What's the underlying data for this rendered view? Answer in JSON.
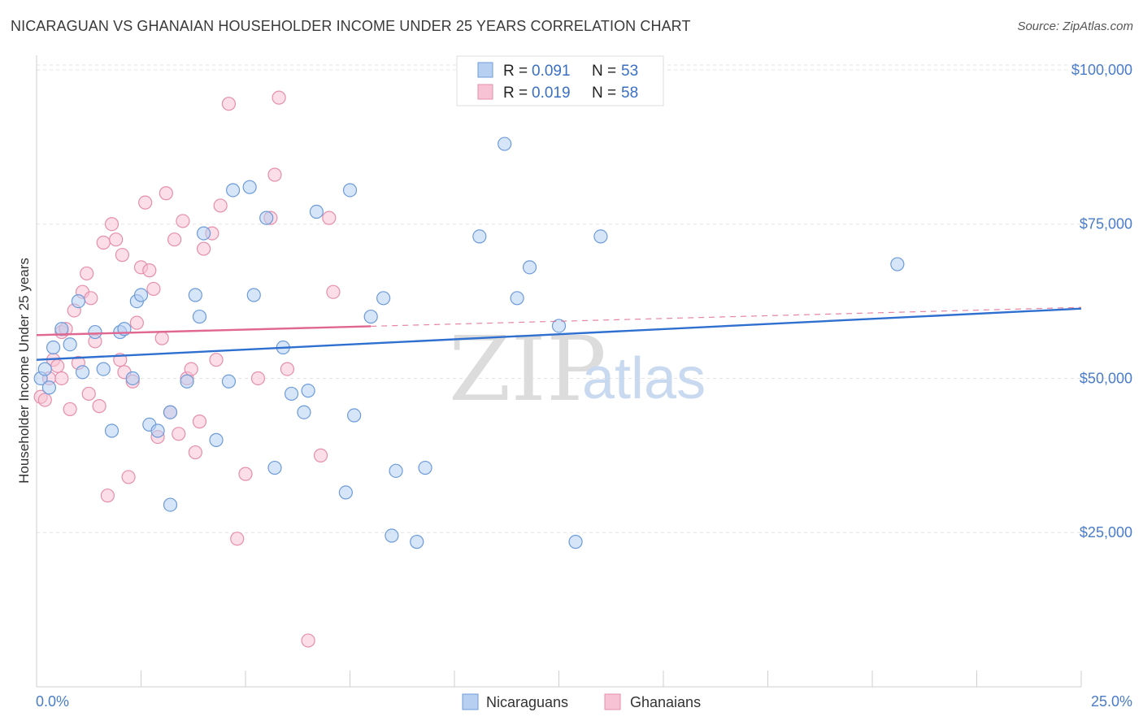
{
  "title": "NICARAGUAN VS GHANAIAN HOUSEHOLDER INCOME UNDER 25 YEARS CORRELATION CHART",
  "source": "Source: ZipAtlas.com",
  "watermark": {
    "zip": "ZIP",
    "atlas": "atlas"
  },
  "colors": {
    "blue_fill": "#b7d0f2",
    "blue_stroke": "#6c9bd9",
    "blue_line": "#2f6fcf",
    "pink_fill": "#f7c3d4",
    "pink_stroke": "#e58fab",
    "pink_line": "#e0678f",
    "grid": "#e3e3e3",
    "axis_text": "#4a7cc9"
  },
  "legend": {
    "rows": [
      {
        "r_label": "R =",
        "r_value": "0.091",
        "n_label": "N =",
        "n_value": "53"
      },
      {
        "r_label": "R =",
        "r_value": "0.019",
        "n_label": "N =",
        "n_value": "58"
      }
    ]
  },
  "bottom_legend": [
    "Nicaraguans",
    "Ghanaians"
  ],
  "chart_data": {
    "type": "scatter",
    "title": "NICARAGUAN VS GHANAIAN HOUSEHOLDER INCOME UNDER 25 YEARS CORRELATION CHART",
    "xlabel": "",
    "ylabel": "Householder Income Under 25 years",
    "xlim": [
      0,
      25
    ],
    "ylim": [
      0,
      105000
    ],
    "x_tick_labels": [
      "0.0%",
      "25.0%"
    ],
    "y_ticks": [
      25000,
      50000,
      75000,
      100000
    ],
    "y_tick_labels": [
      "$25,000",
      "$50,000",
      "$75,000",
      "$100,000"
    ],
    "grid": true,
    "legend_position": "top-center",
    "series": [
      {
        "name": "Nicaraguans",
        "r": 0.091,
        "n": 53,
        "trend": {
          "x": [
            0,
            25
          ],
          "y": [
            53000,
            61300
          ]
        },
        "points": [
          [
            0.1,
            50000
          ],
          [
            0.2,
            51500
          ],
          [
            0.3,
            48500
          ],
          [
            0.4,
            55000
          ],
          [
            0.6,
            58000
          ],
          [
            0.8,
            55500
          ],
          [
            1.0,
            62500
          ],
          [
            1.1,
            51000
          ],
          [
            1.4,
            57500
          ],
          [
            1.6,
            51500
          ],
          [
            1.8,
            41500
          ],
          [
            2.0,
            57500
          ],
          [
            2.1,
            58000
          ],
          [
            2.3,
            50000
          ],
          [
            2.4,
            62500
          ],
          [
            2.5,
            63500
          ],
          [
            2.7,
            42500
          ],
          [
            2.9,
            41500
          ],
          [
            3.2,
            29500
          ],
          [
            3.2,
            44500
          ],
          [
            3.6,
            49500
          ],
          [
            3.8,
            63500
          ],
          [
            3.9,
            60000
          ],
          [
            4.0,
            73500
          ],
          [
            4.3,
            40000
          ],
          [
            4.6,
            49500
          ],
          [
            4.7,
            80500
          ],
          [
            5.1,
            81000
          ],
          [
            5.2,
            63500
          ],
          [
            5.5,
            76000
          ],
          [
            5.7,
            35500
          ],
          [
            5.9,
            55000
          ],
          [
            6.1,
            47500
          ],
          [
            6.4,
            44500
          ],
          [
            6.5,
            48000
          ],
          [
            6.7,
            77000
          ],
          [
            7.4,
            31500
          ],
          [
            7.5,
            80500
          ],
          [
            7.6,
            44000
          ],
          [
            8.0,
            60000
          ],
          [
            8.3,
            63000
          ],
          [
            8.5,
            24500
          ],
          [
            8.6,
            35000
          ],
          [
            9.1,
            23500
          ],
          [
            9.3,
            35500
          ],
          [
            10.6,
            73000
          ],
          [
            11.2,
            88000
          ],
          [
            11.5,
            63000
          ],
          [
            11.8,
            68000
          ],
          [
            12.5,
            58500
          ],
          [
            12.9,
            23500
          ],
          [
            13.5,
            73000
          ],
          [
            20.6,
            68500
          ]
        ]
      },
      {
        "name": "Ghanaians",
        "r": 0.019,
        "n": 58,
        "trend": {
          "x": [
            0,
            25
          ],
          "y": [
            57000,
            61500
          ]
        },
        "trend_solid_to_x": 8.0,
        "points": [
          [
            0.1,
            47000
          ],
          [
            0.2,
            46500
          ],
          [
            0.3,
            50000
          ],
          [
            0.4,
            53000
          ],
          [
            0.5,
            52000
          ],
          [
            0.6,
            50000
          ],
          [
            0.6,
            57500
          ],
          [
            0.7,
            58000
          ],
          [
            0.8,
            45000
          ],
          [
            0.9,
            61000
          ],
          [
            1.0,
            52500
          ],
          [
            1.1,
            64000
          ],
          [
            1.2,
            67000
          ],
          [
            1.3,
            63000
          ],
          [
            1.4,
            56000
          ],
          [
            1.5,
            45500
          ],
          [
            1.6,
            72000
          ],
          [
            1.7,
            31000
          ],
          [
            1.8,
            75000
          ],
          [
            1.9,
            72500
          ],
          [
            2.0,
            53000
          ],
          [
            2.1,
            51000
          ],
          [
            2.2,
            34000
          ],
          [
            2.3,
            49500
          ],
          [
            2.4,
            59000
          ],
          [
            2.5,
            68000
          ],
          [
            2.6,
            78500
          ],
          [
            2.7,
            67500
          ],
          [
            2.8,
            64500
          ],
          [
            2.9,
            40500
          ],
          [
            3.0,
            56500
          ],
          [
            3.1,
            80000
          ],
          [
            3.2,
            44500
          ],
          [
            3.3,
            72500
          ],
          [
            3.4,
            41000
          ],
          [
            3.5,
            75500
          ],
          [
            3.6,
            50000
          ],
          [
            3.7,
            51500
          ],
          [
            3.8,
            38000
          ],
          [
            3.9,
            43000
          ],
          [
            4.0,
            71000
          ],
          [
            4.2,
            73500
          ],
          [
            4.3,
            53000
          ],
          [
            4.4,
            78000
          ],
          [
            4.6,
            94500
          ],
          [
            4.8,
            24000
          ],
          [
            5.0,
            34500
          ],
          [
            5.3,
            50000
          ],
          [
            5.6,
            76000
          ],
          [
            5.7,
            83000
          ],
          [
            5.8,
            95500
          ],
          [
            6.0,
            51500
          ],
          [
            6.5,
            7500
          ],
          [
            6.8,
            37500
          ],
          [
            7.0,
            76000
          ],
          [
            7.1,
            64000
          ],
          [
            2.05,
            70000
          ],
          [
            1.25,
            47500
          ]
        ]
      }
    ]
  }
}
